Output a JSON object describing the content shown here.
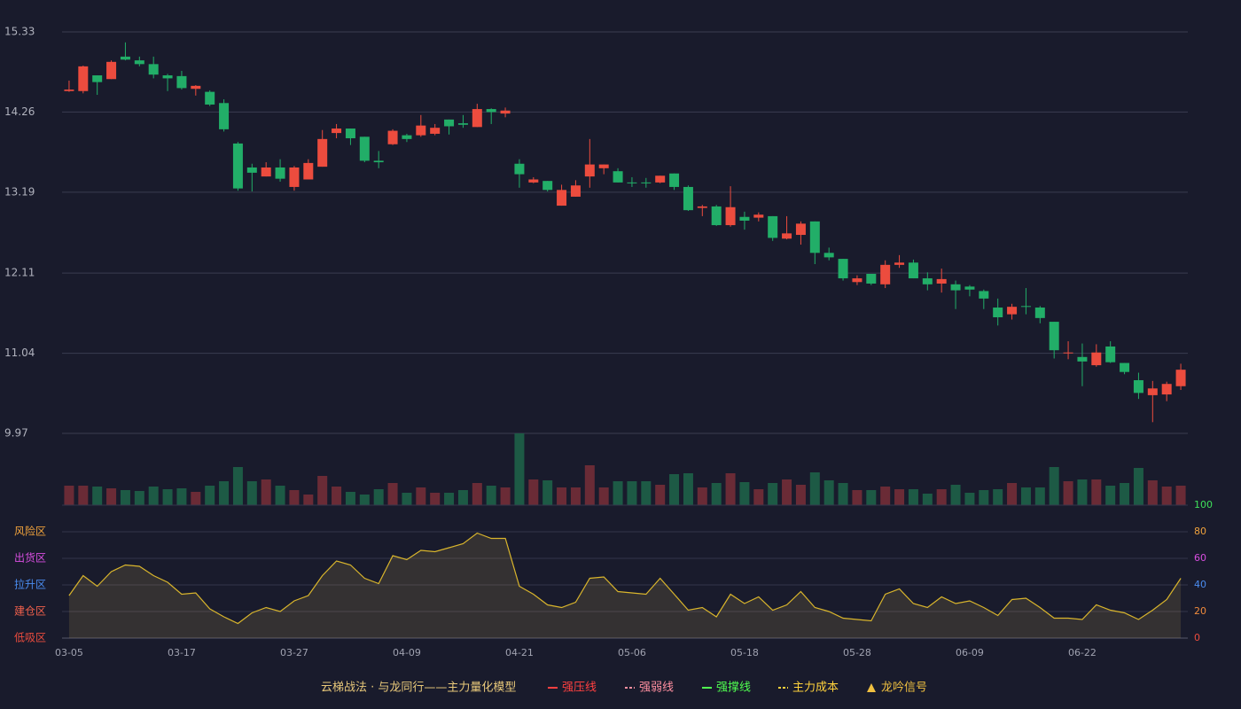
{
  "chart_data": [
    {
      "type": "candlestick",
      "categories": [
        "03-05",
        null,
        null,
        null,
        null,
        null,
        null,
        null,
        "03-17",
        null,
        null,
        null,
        null,
        null,
        null,
        null,
        "03-27",
        null,
        null,
        null,
        null,
        null,
        null,
        null,
        "04-09",
        null,
        null,
        null,
        null,
        null,
        null,
        null,
        "04-21",
        null,
        null,
        null,
        null,
        null,
        null,
        null,
        "05-06",
        null,
        null,
        null,
        null,
        null,
        null,
        null,
        "05-18",
        null,
        null,
        null,
        null,
        null,
        null,
        null,
        "05-28",
        null,
        null,
        null,
        null,
        null,
        null,
        null,
        "06-09",
        null,
        null,
        null,
        null,
        null,
        null,
        null,
        "06-22",
        null,
        null,
        null,
        null,
        null,
        null,
        null
      ],
      "open": [
        14.54,
        14.54,
        14.75,
        14.7,
        15.0,
        14.95,
        14.9,
        14.75,
        14.74,
        14.57,
        14.53,
        14.38,
        13.84,
        13.52,
        13.4,
        13.52,
        13.26,
        13.36,
        13.53,
        13.98,
        14.04,
        13.93,
        13.61,
        13.83,
        13.95,
        13.95,
        13.97,
        14.16,
        14.11,
        14.06,
        14.3,
        14.24,
        13.57,
        13.32,
        13.34,
        13.01,
        13.13,
        13.4,
        13.51,
        13.47,
        13.32,
        13.32,
        13.32,
        13.44,
        13.26,
        12.98,
        13.0,
        12.75,
        12.86,
        12.85,
        12.87,
        12.57,
        12.62,
        12.8,
        12.38,
        12.3,
        11.99,
        12.1,
        11.96,
        12.22,
        12.25,
        12.04,
        11.97,
        11.96,
        11.93,
        11.87,
        11.65,
        11.56,
        11.67,
        11.65,
        11.46,
        11.04,
        10.99,
        10.88,
        11.13,
        10.91,
        10.68,
        10.48,
        10.49,
        10.6
      ],
      "high": [
        14.68,
        14.88,
        14.75,
        14.95,
        15.19,
        15.0,
        15.0,
        14.77,
        14.81,
        14.62,
        14.55,
        14.43,
        13.86,
        13.57,
        13.59,
        13.63,
        13.54,
        13.63,
        14.02,
        14.1,
        14.04,
        13.93,
        13.74,
        14.03,
        13.97,
        14.22,
        14.1,
        14.16,
        14.22,
        14.37,
        14.31,
        14.32,
        13.63,
        13.39,
        13.34,
        13.29,
        13.35,
        13.9,
        13.56,
        13.51,
        13.39,
        13.38,
        13.41,
        13.44,
        13.28,
        13.02,
        13.02,
        13.27,
        12.93,
        12.92,
        12.87,
        12.87,
        12.8,
        12.8,
        12.45,
        12.3,
        12.08,
        12.1,
        12.28,
        12.35,
        12.29,
        12.12,
        12.17,
        12.01,
        11.95,
        11.89,
        11.77,
        11.7,
        11.91,
        11.67,
        11.46,
        11.2,
        11.17,
        11.16,
        11.2,
        10.91,
        10.78,
        10.67,
        10.66,
        10.9
      ],
      "low": [
        14.53,
        14.51,
        14.49,
        14.7,
        14.95,
        14.87,
        14.71,
        14.54,
        14.56,
        14.48,
        14.34,
        14.0,
        13.21,
        13.2,
        13.4,
        13.33,
        13.21,
        13.36,
        13.53,
        13.91,
        13.82,
        13.59,
        13.51,
        13.82,
        13.86,
        13.93,
        13.95,
        13.96,
        14.05,
        14.06,
        14.1,
        14.19,
        13.25,
        13.31,
        13.2,
        13.01,
        13.13,
        13.25,
        13.43,
        13.32,
        13.26,
        13.25,
        13.31,
        13.22,
        12.94,
        12.87,
        12.74,
        12.73,
        12.69,
        12.8,
        12.54,
        12.56,
        12.49,
        12.23,
        12.28,
        12.01,
        11.95,
        11.95,
        11.91,
        12.18,
        12.04,
        11.88,
        11.85,
        11.63,
        11.8,
        11.63,
        11.41,
        11.49,
        11.56,
        11.44,
        10.97,
        10.96,
        10.6,
        10.86,
        10.91,
        10.76,
        10.43,
        10.12,
        10.4,
        10.55
      ],
      "close": [
        14.56,
        14.87,
        14.66,
        14.93,
        14.96,
        14.9,
        14.76,
        14.71,
        14.58,
        14.61,
        14.36,
        14.03,
        13.24,
        13.45,
        13.52,
        13.37,
        13.52,
        13.58,
        13.9,
        14.04,
        13.91,
        13.61,
        13.59,
        14.01,
        13.9,
        14.08,
        14.05,
        14.07,
        14.09,
        14.3,
        14.26,
        14.28,
        13.43,
        13.36,
        13.22,
        13.22,
        13.28,
        13.56,
        13.56,
        13.32,
        13.31,
        13.31,
        13.41,
        13.26,
        12.95,
        13.0,
        12.75,
        12.99,
        12.81,
        12.89,
        12.58,
        12.64,
        12.77,
        12.38,
        12.32,
        12.04,
        12.04,
        11.97,
        12.22,
        12.25,
        12.04,
        11.96,
        12.03,
        11.88,
        11.89,
        11.77,
        11.52,
        11.66,
        11.66,
        11.51,
        11.08,
        11.05,
        10.93,
        11.05,
        10.92,
        10.79,
        10.51,
        10.57,
        10.63,
        10.82
      ],
      "up_color": "#ec4c3e",
      "down_color": "#22ae68",
      "ylim": [
        9.97,
        15.33
      ],
      "yticks": [
        9.97,
        11.04,
        12.11,
        13.19,
        14.26,
        15.33
      ],
      "grid": true
    },
    {
      "type": "bar",
      "values": [
        22,
        22,
        21,
        19,
        17,
        16,
        21,
        18,
        19,
        15,
        22,
        27,
        43,
        27,
        29,
        22,
        17,
        12,
        33,
        21,
        15,
        12,
        18,
        25,
        14,
        20,
        14,
        14,
        17,
        25,
        22,
        20,
        81,
        29,
        28,
        20,
        20,
        45,
        20,
        27,
        27,
        27,
        23,
        35,
        36,
        20,
        25,
        36,
        26,
        18,
        25,
        29,
        23,
        37,
        28,
        25,
        17,
        17,
        21,
        18,
        18,
        13,
        18,
        23,
        14,
        17,
        18,
        25,
        20,
        20,
        43,
        27,
        29,
        29,
        22,
        25,
        42,
        28,
        21,
        22
      ],
      "up_color": "#6a2b36",
      "down_color": "#1d5a45"
    },
    {
      "type": "line",
      "values": [
        32,
        47,
        39,
        50,
        55,
        54,
        47,
        42,
        33,
        34,
        22,
        16,
        11,
        19,
        23,
        20,
        28,
        32,
        47,
        58,
        55,
        45,
        41,
        62,
        59,
        66,
        65,
        68,
        71,
        79,
        75,
        75,
        39,
        33,
        25,
        23,
        27,
        45,
        46,
        35,
        34,
        33,
        45,
        33,
        21,
        23,
        16,
        33,
        26,
        31,
        21,
        25,
        35,
        23,
        20,
        15,
        14,
        13,
        33,
        37,
        26,
        23,
        31,
        26,
        28,
        23,
        17,
        29,
        30,
        23,
        15,
        15,
        14,
        25,
        21,
        19,
        14,
        21,
        29,
        45
      ],
      "color": "#d9b52c",
      "ylim": [
        0,
        100
      ],
      "yticks": [
        0,
        20,
        40,
        60,
        80,
        100
      ],
      "ytick_colors": [
        "#ec4c3e",
        "#f08a3c",
        "#4a8cf0",
        "#d84ee0",
        "#f0a23c",
        "#3ee05a"
      ],
      "zones": [
        {
          "value": 80,
          "label": "风险区",
          "color": "#f0a23c"
        },
        {
          "value": 60,
          "label": "出货区",
          "color": "#d84ee0"
        },
        {
          "value": 40,
          "label": "拉升区",
          "color": "#4a8cf0"
        },
        {
          "value": 20,
          "label": "建仓区",
          "color": "#f0604c"
        },
        {
          "value": 0,
          "label": "低吸区",
          "color": "#ec4c3e"
        }
      ],
      "grid": true,
      "legend_title": "云梯战法 · 与龙同行——主力量化模型",
      "legend": [
        {
          "name": "强压线",
          "color": "#ff4040",
          "style": "solid"
        },
        {
          "name": "强弱线",
          "color": "#ff8fa0",
          "style": "dashed"
        },
        {
          "name": "强撑线",
          "color": "#50ff50",
          "style": "solid"
        },
        {
          "name": "主力成本",
          "color": "#ffd23c",
          "style": "dashed"
        },
        {
          "name": "龙吟信号",
          "color": "#f0c040",
          "style": "triangle"
        }
      ]
    }
  ]
}
